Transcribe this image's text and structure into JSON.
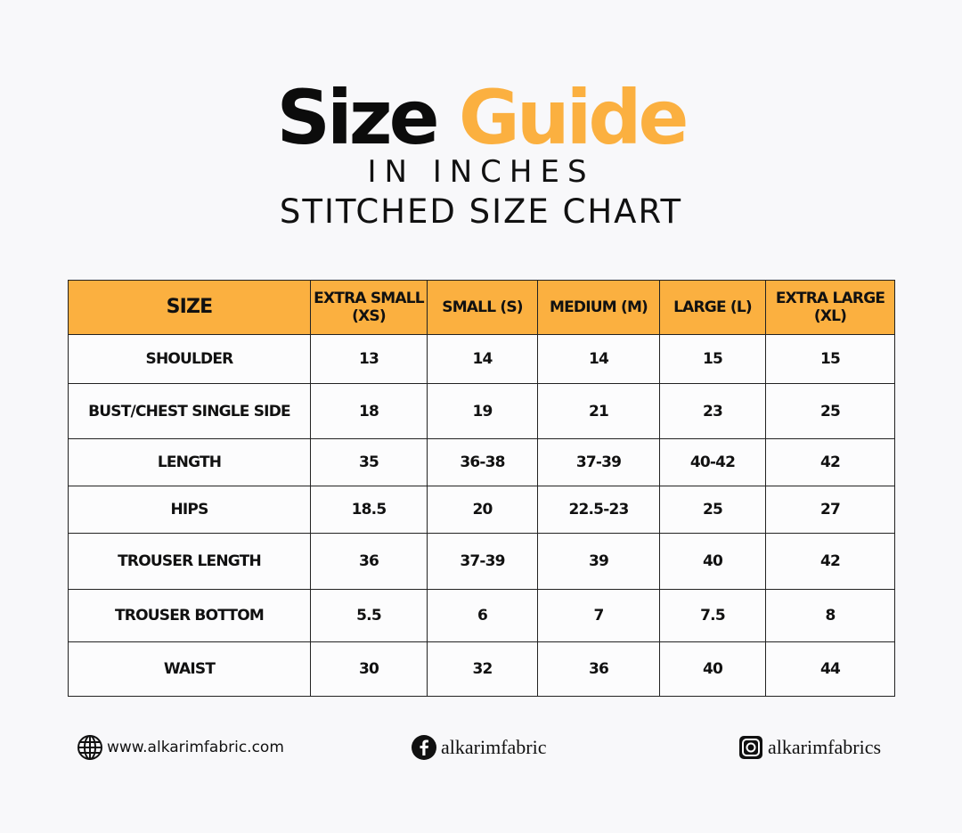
{
  "header": {
    "title_part1": "Size",
    "title_part2": "Guide",
    "subtitle1": "IN INCHES",
    "subtitle2": "STITCHED SIZE CHART"
  },
  "colors": {
    "accent": "#fbb040",
    "text": "#111111",
    "background": "#f8f8fa"
  },
  "table": {
    "headers": [
      "SIZE",
      "EXTRA SMALL (XS)",
      "SMALL (S)",
      "MEDIUM (M)",
      "LARGE (L)",
      "EXTRA LARGE (XL)"
    ],
    "rows": [
      [
        "SHOULDER",
        "13",
        "14",
        "14",
        "15",
        "15"
      ],
      [
        "BUST/CHEST SINGLE SIDE",
        "18",
        "19",
        "21",
        "23",
        "25"
      ],
      [
        "LENGTH",
        "35",
        "36-38",
        "37-39",
        "40-42",
        "42"
      ],
      [
        "HIPS",
        "18.5",
        "20",
        "22.5-23",
        "25",
        "27"
      ],
      [
        "TROUSER LENGTH",
        "36",
        "37-39",
        "39",
        "40",
        "42"
      ],
      [
        "TROUSER BOTTOM",
        "5.5",
        "6",
        "7",
        "7.5",
        "8"
      ],
      [
        "WAIST",
        "30",
        "32",
        "36",
        "40",
        "44"
      ]
    ]
  },
  "footer": {
    "website": {
      "icon": "globe-icon",
      "text": "www.alkarimfabric.com"
    },
    "facebook": {
      "icon": "facebook-icon",
      "text": "alkarimfabric"
    },
    "instagram": {
      "icon": "instagram-icon",
      "text": "alkarimfabrics"
    }
  }
}
